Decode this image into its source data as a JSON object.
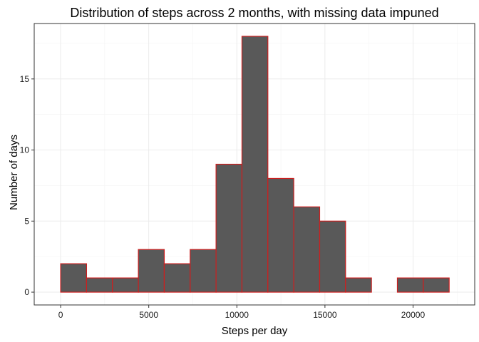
{
  "chart_data": {
    "type": "bar",
    "title": "Distribution of steps across 2 months, with missing data impuned",
    "xlabel": "Steps per day",
    "ylabel": "Number of days",
    "xlim": [
      -1500,
      23500
    ],
    "ylim": [
      -0.9,
      18.9
    ],
    "x_ticks": [
      0,
      5000,
      10000,
      15000,
      20000
    ],
    "x_tick_labels": [
      "0",
      "5000",
      "10000",
      "15000",
      "20000"
    ],
    "y_ticks": [
      0,
      5,
      10,
      15
    ],
    "y_tick_labels": [
      "0",
      "5",
      "10",
      "15"
    ],
    "bins": [
      {
        "x0": 0,
        "x1": 1470,
        "count": 2
      },
      {
        "x0": 1470,
        "x1": 2940,
        "count": 1
      },
      {
        "x0": 2940,
        "x1": 4410,
        "count": 1
      },
      {
        "x0": 4410,
        "x1": 5880,
        "count": 3
      },
      {
        "x0": 5880,
        "x1": 7350,
        "count": 2
      },
      {
        "x0": 7350,
        "x1": 8820,
        "count": 3
      },
      {
        "x0": 8820,
        "x1": 10290,
        "count": 9
      },
      {
        "x0": 10290,
        "x1": 11760,
        "count": 18
      },
      {
        "x0": 11760,
        "x1": 13230,
        "count": 8
      },
      {
        "x0": 13230,
        "x1": 14700,
        "count": 6
      },
      {
        "x0": 14700,
        "x1": 16170,
        "count": 5
      },
      {
        "x0": 16170,
        "x1": 17640,
        "count": 1
      },
      {
        "x0": 17640,
        "x1": 19110,
        "count": 0
      },
      {
        "x0": 19110,
        "x1": 20580,
        "count": 1
      },
      {
        "x0": 20580,
        "x1": 22050,
        "count": 1
      }
    ],
    "bar_fill": "#595959",
    "bar_outline": "#cc1f1f",
    "grid": true,
    "grid_color": "#ebebeb",
    "minor_grid_color": "#f4f4f4",
    "panel_border": "#333333",
    "legend": "none"
  }
}
